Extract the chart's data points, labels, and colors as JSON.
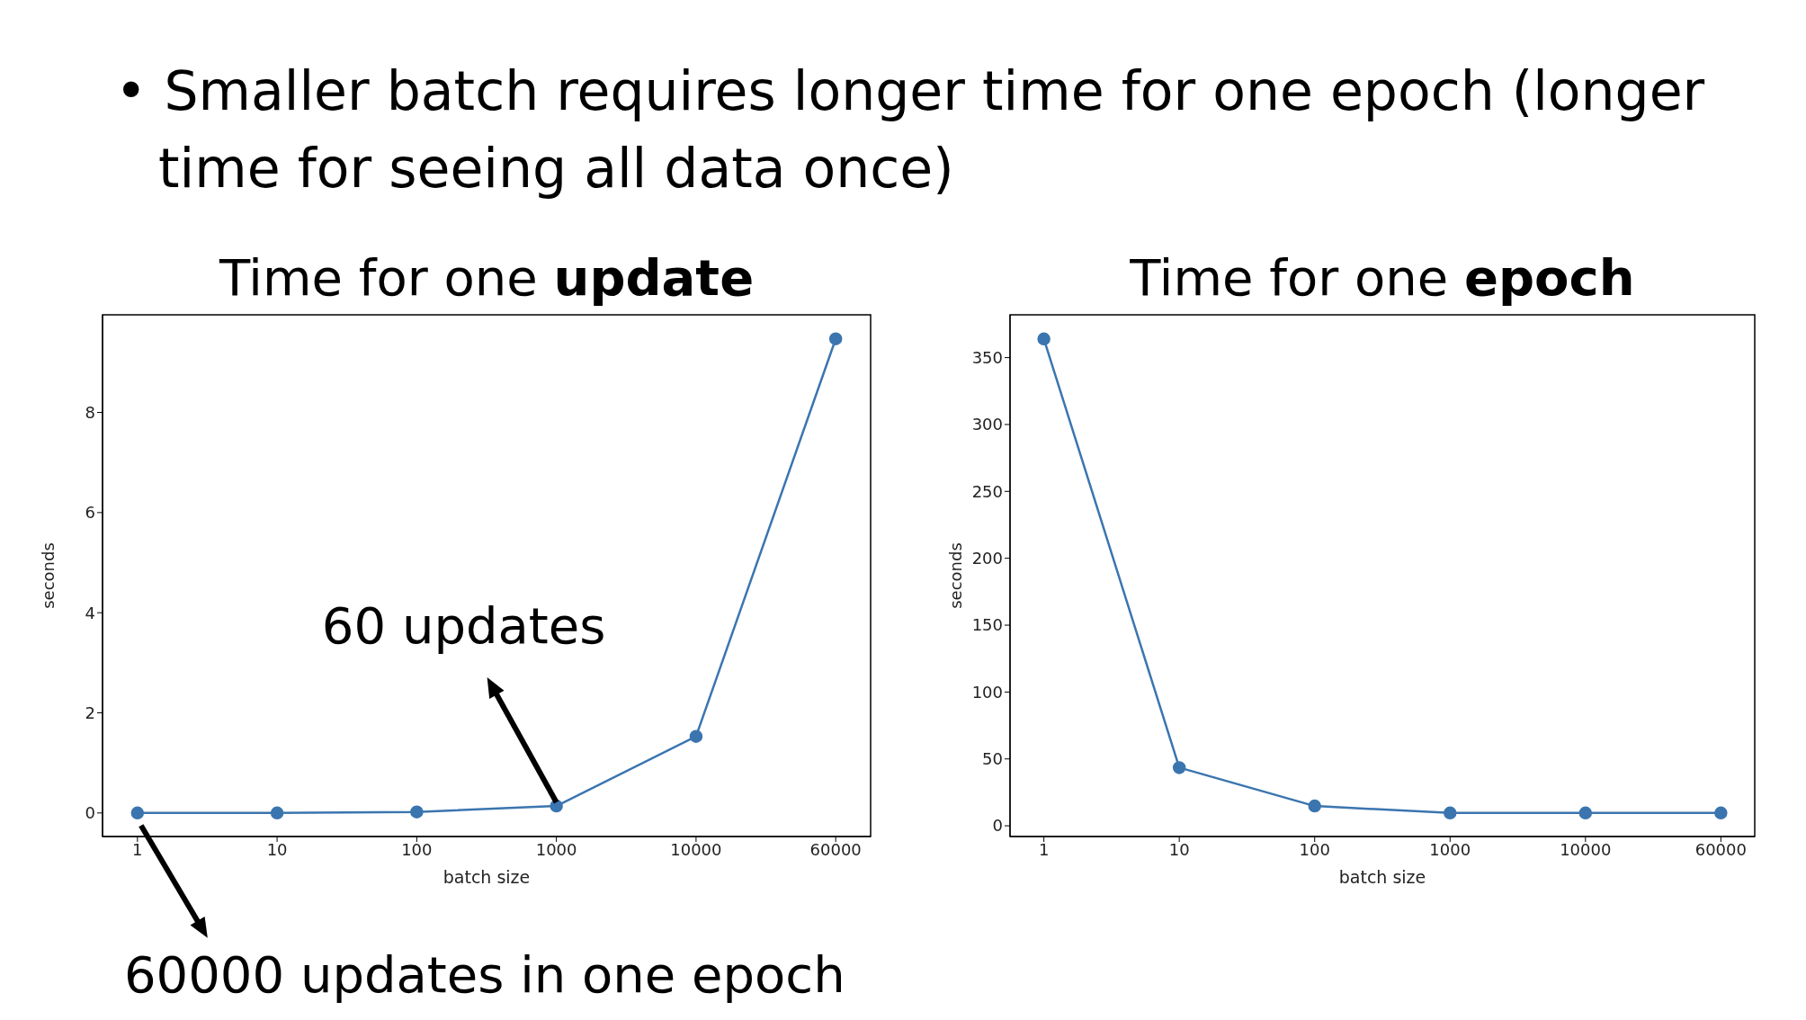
{
  "chart_data": [
    {
      "type": "line",
      "title": "Time for one update",
      "xlabel": "batch size",
      "ylabel": "seconds",
      "categories": [
        "1",
        "10",
        "100",
        "1000",
        "10000",
        "60000"
      ],
      "series": [
        {
          "color": "#3b75af",
          "values": [
            0,
            0,
            0.02,
            0.14,
            1.53,
            9.47
          ]
        }
      ],
      "ylim": [
        -0.47,
        9.95
      ],
      "yticks": [
        0,
        2,
        4,
        6,
        8
      ],
      "marker": "circle",
      "grid": false,
      "legend": false,
      "annotations": [
        "• Smaller batch requires longer time for one epoch (longer time for seeing all data once)",
        {
          "text": "60 updates",
          "x": "1000",
          "y": 0.14
        },
        {
          "text": "60000 updates in one epoch",
          "x": "1",
          "y": 0
        }
      ]
    },
    {
      "type": "line",
      "title": "Time for one epoch",
      "xlabel": "batch size",
      "ylabel": "seconds",
      "categories": [
        "1",
        "10",
        "100",
        "1000",
        "10000",
        "60000"
      ],
      "series": [
        {
          "color": "#3b75af",
          "values": [
            364,
            43.5,
            14.8,
            9.6,
            9.6,
            9.6
          ]
        }
      ],
      "ylim": [
        -8,
        382
      ],
      "yticks": [
        0,
        50,
        100,
        150,
        200,
        250,
        300,
        350
      ],
      "marker": "circle",
      "grid": false,
      "legend": false
    }
  ]
}
